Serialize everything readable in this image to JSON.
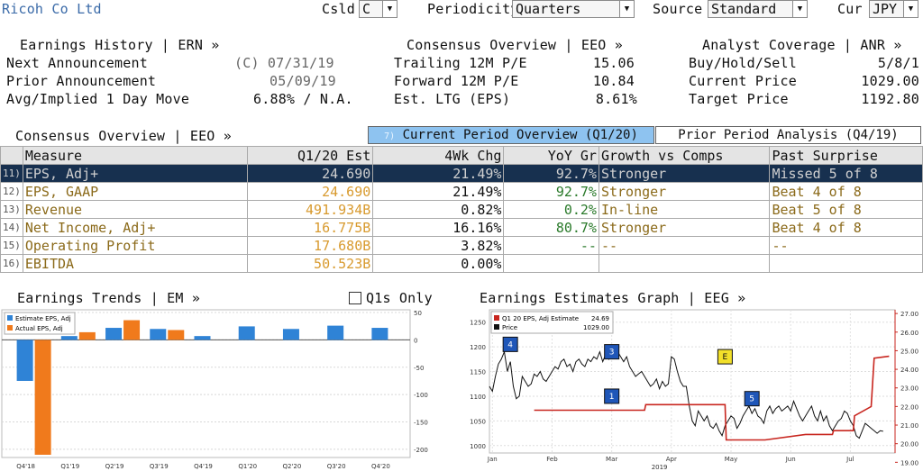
{
  "header": {
    "company": "Ricoh Co Ltd",
    "csld_label": "Csld",
    "csld_value": "C",
    "periodicity_label": "Periodicity",
    "periodicity_value": "Quarters",
    "source_label": "Source",
    "source_value": "Standard",
    "cur_label": "Cur",
    "cur_value": "JPY"
  },
  "earnings_history": {
    "title": "Earnings History | ERN »",
    "next_label": "Next Announcement",
    "next_value": "(C)  07/31/19",
    "prior_label": "Prior Announcement",
    "prior_value": "05/09/19",
    "move_label": "Avg/Implied 1 Day Move",
    "move_value": "6.88% / N.A."
  },
  "consensus_top": {
    "title": "Consensus Overview | EEO »",
    "trailing_label": "Trailing 12M P/E",
    "trailing_value": "15.06",
    "forward_label": "Forward 12M P/E",
    "forward_value": "10.84",
    "ltg_label": "Est. LTG (EPS)",
    "ltg_value": "8.61%"
  },
  "analyst": {
    "title": "Analyst Coverage | ANR »",
    "bhs_label": "Buy/Hold/Sell",
    "bhs_value": "5/8/1",
    "price_label": "Current Price",
    "price_value": "1029.00",
    "target_label": "Target Price",
    "target_value": "1192.80"
  },
  "consensus_table": {
    "title": "Consensus Overview | EEO »",
    "tab_current_num": "7)",
    "tab_current": "Current Period Overview (Q1/20)",
    "tab_prior": "Prior Period Analysis (Q4/19)",
    "headers": [
      "Measure",
      "Q1/20 Est",
      "4Wk Chg",
      "YoY Gr",
      "Growth vs Comps",
      "Past Surprise"
    ],
    "rows": [
      {
        "num": "11)",
        "measure": "EPS, Adj+",
        "est": "24.690",
        "chg": "21.49%",
        "yoy": "92.7%",
        "growth": "Stronger",
        "surprise": "Missed 5 of 8"
      },
      {
        "num": "12)",
        "measure": "EPS, GAAP",
        "est": "24.690",
        "chg": "21.49%",
        "yoy": "92.7%",
        "growth": "Stronger",
        "surprise": "Beat 4 of 8"
      },
      {
        "num": "13)",
        "measure": "Revenue",
        "est": "491.934B",
        "chg": "0.82%",
        "yoy": "0.2%",
        "growth": "In-line",
        "surprise": "Beat 5 of 8"
      },
      {
        "num": "14)",
        "measure": "Net Income, Adj+",
        "est": "16.775B",
        "chg": "16.16%",
        "yoy": "80.7%",
        "growth": "Stronger",
        "surprise": "Beat 4 of 8"
      },
      {
        "num": "15)",
        "measure": "Operating Profit",
        "est": "17.680B",
        "chg": "3.82%",
        "yoy": "--",
        "growth": "--",
        "surprise": "--"
      },
      {
        "num": "16)",
        "measure": "EBITDA",
        "est": "50.523B",
        "chg": "0.00%",
        "yoy": "",
        "growth": "",
        "surprise": ""
      }
    ]
  },
  "earnings_trends": {
    "title": "Earnings Trends | EM »",
    "q1s_label": "Q1s Only",
    "legend_estimate": "Estimate EPS, Adj",
    "legend_actual": "Actual EPS, Adj",
    "color_estimate": "#2f83d6",
    "color_actual": "#f07a1c"
  },
  "chart_data": [
    {
      "type": "bar",
      "categories": [
        "Q4'18",
        "Q1'19",
        "Q2'19",
        "Q3'19",
        "Q4'19",
        "Q1'20",
        "Q2'20",
        "Q3'20",
        "Q4'20"
      ],
      "series": [
        {
          "name": "Estimate EPS, Adj",
          "values": [
            -75,
            7,
            22,
            20,
            7,
            24.69,
            20,
            26,
            22
          ]
        },
        {
          "name": "Actual EPS, Adj",
          "values": [
            -210,
            14,
            36,
            18,
            null,
            null,
            null,
            null,
            null
          ]
        }
      ],
      "y_ticks": [
        50,
        0,
        -50,
        -100,
        -150,
        -200
      ],
      "ylim": [
        -215,
        55
      ]
    },
    {
      "type": "line",
      "title": "Earnings Estimates Graph | EEG »",
      "x_labels": [
        "Jan",
        "Feb",
        "Mar",
        "Apr",
        "May",
        "Jun",
        "Jul"
      ],
      "x_year_label": "2019",
      "legend_series1": "Q1 20 EPS, Adj Estimate",
      "legend_series1_value": "24.69",
      "legend_series2": "Price",
      "legend_series2_value": "1029.00",
      "left_ticks": [
        1250,
        1200,
        1150,
        1100,
        1050,
        1000
      ],
      "right_ticks": [
        "27.00",
        "26.00",
        "25.00",
        "24.00",
        "23.00",
        "22.00",
        "21.00",
        "20.00",
        "19.00"
      ],
      "series": [
        {
          "name": "Price",
          "color": "#111111",
          "x": [
            0,
            0.05,
            0.1,
            0.15,
            0.2,
            0.25,
            0.3,
            0.35,
            0.4,
            0.45,
            0.5,
            0.55,
            0.6,
            0.65,
            0.7,
            0.75,
            0.8,
            0.85,
            0.9,
            0.95,
            1.0,
            1.05,
            1.1,
            1.15,
            1.2,
            1.25,
            1.3,
            1.35,
            1.4,
            1.45,
            1.5,
            1.55,
            1.6,
            1.65,
            1.7,
            1.75,
            1.8,
            1.85,
            1.9,
            1.95,
            2.0,
            2.05,
            2.1,
            2.15,
            2.2,
            2.25,
            2.3,
            2.35,
            2.4,
            2.45,
            2.5,
            2.55,
            2.6,
            2.65,
            2.7,
            2.75,
            2.8,
            2.85,
            2.9,
            2.95,
            3.0,
            3.05,
            3.1,
            3.15,
            3.2,
            3.25,
            3.3,
            3.35,
            3.4,
            3.45,
            3.5,
            3.55,
            3.6,
            3.65,
            3.7,
            3.75,
            3.8,
            3.85,
            3.9,
            3.95,
            4.0,
            4.05,
            4.1,
            4.15,
            4.2,
            4.25,
            4.3,
            4.35,
            4.4,
            4.45,
            4.5,
            4.55,
            4.6,
            4.65,
            4.7,
            4.75,
            4.8,
            4.85,
            4.9,
            4.95,
            5.0,
            5.05,
            5.1,
            5.15,
            5.2,
            5.25,
            5.3,
            5.35,
            5.4,
            5.45,
            5.5,
            5.55,
            5.6,
            5.65,
            5.7,
            5.75,
            5.8,
            5.85,
            5.9,
            5.95,
            6.0,
            6.05,
            6.1,
            6.15,
            6.2,
            6.25,
            6.3,
            6.35,
            6.4,
            6.45,
            6.5,
            6.55,
            6.6
          ],
          "values": [
            1120,
            1110,
            1140,
            1165,
            1175,
            1190,
            1150,
            1170,
            1120,
            1095,
            1100,
            1140,
            1130,
            1120,
            1125,
            1145,
            1140,
            1150,
            1135,
            1130,
            1140,
            1150,
            1160,
            1155,
            1170,
            1175,
            1160,
            1165,
            1150,
            1170,
            1175,
            1165,
            1160,
            1175,
            1170,
            1180,
            1175,
            1190,
            1170,
            1185,
            1175,
            1195,
            1200,
            1190,
            1180,
            1170,
            1180,
            1160,
            1150,
            1140,
            1145,
            1150,
            1140,
            1130,
            1120,
            1125,
            1135,
            1115,
            1130,
            1120,
            1125,
            1180,
            1175,
            1150,
            1130,
            1120,
            1120,
            1080,
            1050,
            1040,
            1070,
            1060,
            1050,
            1060,
            1040,
            1035,
            1045,
            1030,
            1020,
            1040,
            1050,
            1060,
            1055,
            1035,
            1045,
            1060,
            1070,
            1080,
            1065,
            1075,
            1060,
            1055,
            1045,
            1070,
            1080,
            1065,
            1075,
            1080,
            1070,
            1075,
            1080,
            1070,
            1090,
            1075,
            1060,
            1050,
            1060,
            1070,
            1080,
            1060,
            1050,
            1070,
            1050,
            1060,
            1040,
            1030,
            1040,
            1050,
            1055,
            1070,
            1065,
            1050,
            1040,
            1020,
            1015,
            1030,
            1045,
            1040,
            1035,
            1030,
            1025,
            1030,
            1029
          ]
        },
        {
          "name": "Q1 20 EPS, Adj Estimate",
          "color": "#c8261f",
          "x": [
            0.75,
            2.6,
            2.62,
            3.3,
            3.32,
            3.95,
            3.97,
            4.6,
            4.62,
            5.3,
            5.32,
            5.75,
            5.77,
            6.1,
            6.12,
            6.4,
            6.45,
            6.7
          ],
          "values": [
            21.8,
            21.8,
            22.1,
            22.1,
            22.1,
            22.1,
            20.2,
            20.2,
            20.2,
            20.5,
            20.5,
            20.5,
            20.7,
            20.7,
            21.5,
            22.0,
            24.6,
            24.7
          ]
        }
      ],
      "markers": [
        {
          "label": "4",
          "kind": "blue",
          "x": 0.35,
          "value": 1205
        },
        {
          "label": "3",
          "kind": "blue",
          "x": 2.05,
          "value": 1190
        },
        {
          "label": "1",
          "kind": "blue",
          "x": 2.05,
          "value": 1100
        },
        {
          "label": "E",
          "kind": "yellow",
          "x": 3.95,
          "value": 1180
        },
        {
          "label": "5",
          "kind": "blue",
          "x": 4.4,
          "value": 1095
        }
      ]
    }
  ]
}
